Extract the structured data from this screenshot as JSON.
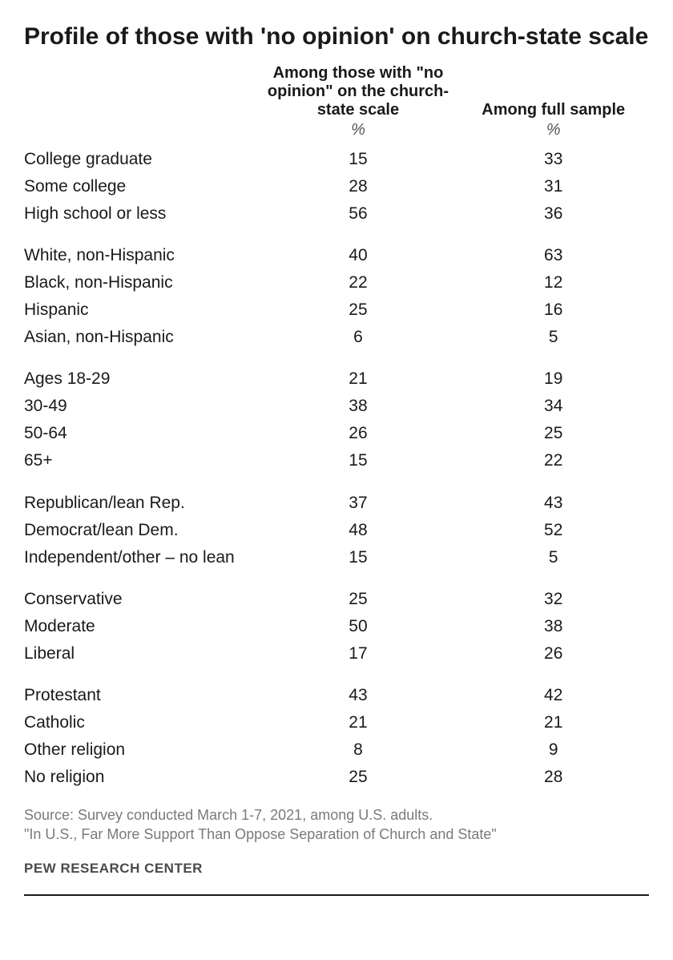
{
  "title": "Profile of those with 'no opinion' on church-state scale",
  "columns": {
    "c1": "Among those with \"no opinion\" on the church-state scale",
    "c2": "Among full sample"
  },
  "unit": "%",
  "groups": [
    {
      "rows": [
        {
          "label": "College graduate",
          "v1": "15",
          "v2": "33"
        },
        {
          "label": "Some college",
          "v1": "28",
          "v2": "31"
        },
        {
          "label": "High school or less",
          "v1": "56",
          "v2": "36"
        }
      ]
    },
    {
      "rows": [
        {
          "label": "White, non-Hispanic",
          "v1": "40",
          "v2": "63"
        },
        {
          "label": "Black, non-Hispanic",
          "v1": "22",
          "v2": "12"
        },
        {
          "label": "Hispanic",
          "v1": "25",
          "v2": "16"
        },
        {
          "label": "Asian, non-Hispanic",
          "v1": "6",
          "v2": "5"
        }
      ]
    },
    {
      "rows": [
        {
          "label": "Ages 18-29",
          "v1": "21",
          "v2": "19"
        },
        {
          "label": "30-49",
          "v1": "38",
          "v2": "34"
        },
        {
          "label": "50-64",
          "v1": "26",
          "v2": "25"
        },
        {
          "label": "65+",
          "v1": "15",
          "v2": "22"
        }
      ]
    },
    {
      "rows": [
        {
          "label": "Republican/lean Rep.",
          "v1": "37",
          "v2": "43"
        },
        {
          "label": "Democrat/lean Dem.",
          "v1": "48",
          "v2": "52"
        },
        {
          "label": "Independent/other – no lean",
          "v1": "15",
          "v2": "5"
        }
      ]
    },
    {
      "rows": [
        {
          "label": "Conservative",
          "v1": "25",
          "v2": "32"
        },
        {
          "label": "Moderate",
          "v1": "50",
          "v2": "38"
        },
        {
          "label": "Liberal",
          "v1": "17",
          "v2": "26"
        }
      ]
    },
    {
      "rows": [
        {
          "label": "Protestant",
          "v1": "43",
          "v2": "42"
        },
        {
          "label": "Catholic",
          "v1": "21",
          "v2": "21"
        },
        {
          "label": "Other religion",
          "v1": "8",
          "v2": "9"
        },
        {
          "label": "No religion",
          "v1": "25",
          "v2": "28"
        }
      ]
    }
  ],
  "footnotes": {
    "line1": "Source: Survey conducted March 1-7, 2021, among U.S. adults.",
    "line2": "\"In U.S., Far More Support Than Oppose Separation of Church and State\""
  },
  "attribution": "PEW RESEARCH CENTER",
  "style": {
    "text_color": "#1a1a1a",
    "footnote_color": "#7a7a7a",
    "attribution_color": "#4a4a4a",
    "background": "#ffffff",
    "title_fontsize": 30,
    "body_fontsize": 21,
    "footnote_fontsize": 18
  }
}
